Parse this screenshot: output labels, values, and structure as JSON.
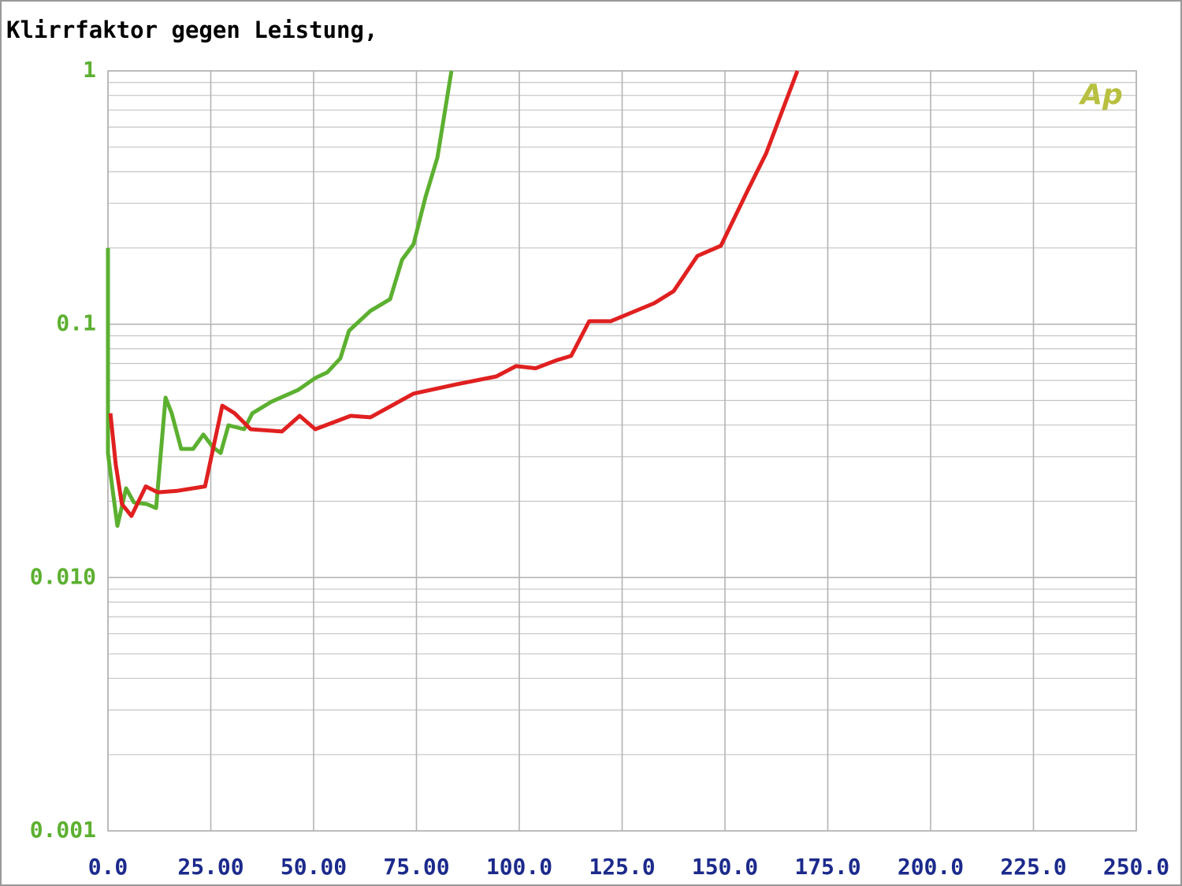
{
  "chart_data": {
    "type": "line",
    "title": "Klirrfaktor gegen Leistung,",
    "logo": "Ap",
    "ylog": true,
    "grid": true,
    "xlim": [
      0,
      250
    ],
    "xticks": [
      {
        "value": 0,
        "label": "0.0"
      },
      {
        "value": 25,
        "label": "25.00"
      },
      {
        "value": 50,
        "label": "50.00"
      },
      {
        "value": 75,
        "label": "75.00"
      },
      {
        "value": 100,
        "label": "100.0"
      },
      {
        "value": 125,
        "label": "125.0"
      },
      {
        "value": 150,
        "label": "150.0"
      },
      {
        "value": 175,
        "label": "175.0"
      },
      {
        "value": 200,
        "label": "200.0"
      },
      {
        "value": 225,
        "label": "225.0"
      },
      {
        "value": 250,
        "label": "250.0"
      }
    ],
    "ylim": [
      0.001,
      1
    ],
    "yticks": [
      0.001,
      {
        "value": 0.01,
        "label": "0.010"
      },
      0.1,
      1
    ],
    "series": [
      {
        "color": "#5cb030",
        "x": [
          0,
          0,
          0.96,
          2.3,
          4.4,
          6.3,
          9.4,
          11.7,
          14.0,
          15.5,
          17.8,
          20.7,
          23.2,
          25.5,
          27.4,
          29.3,
          33.1,
          35.1,
          39.8,
          46.2,
          50.4,
          53.3,
          56.5,
          58.6,
          63.8,
          68.6,
          71.5,
          74.3,
          77.2,
          80.1,
          83.5
        ],
        "values": [
          0.2,
          0.031,
          0.0233,
          0.016,
          0.0225,
          0.0198,
          0.0195,
          0.0188,
          0.0513,
          0.0445,
          0.0322,
          0.0322,
          0.0367,
          0.0327,
          0.031,
          0.0399,
          0.0385,
          0.0445,
          0.0495,
          0.055,
          0.0613,
          0.0645,
          0.0733,
          0.0942,
          0.1128,
          0.1256,
          0.1795,
          0.207,
          0.318,
          0.455,
          1.0
        ]
      },
      {
        "color": "#e02020",
        "x": [
          0.6,
          1.9,
          3.4,
          5.7,
          9.2,
          12.1,
          16.9,
          23.6,
          27.8,
          30.8,
          34.7,
          42.3,
          46.6,
          50.4,
          59.0,
          63.8,
          74.3,
          84.9,
          94.4,
          99.2,
          104.0,
          108.8,
          112.6,
          117.0,
          122.2,
          132.8,
          137.5,
          143.3,
          149.0,
          155.7,
          160.0,
          167.6
        ],
        "values": [
          0.0445,
          0.0279,
          0.0195,
          0.0175,
          0.0229,
          0.0217,
          0.022,
          0.0229,
          0.0477,
          0.0445,
          0.0385,
          0.0377,
          0.0435,
          0.0385,
          0.0435,
          0.0429,
          0.0532,
          0.058,
          0.0622,
          0.0683,
          0.067,
          0.0718,
          0.075,
          0.1027,
          0.1027,
          0.121,
          0.1349,
          0.186,
          0.204,
          0.342,
          0.472,
          1.0
        ]
      }
    ]
  }
}
